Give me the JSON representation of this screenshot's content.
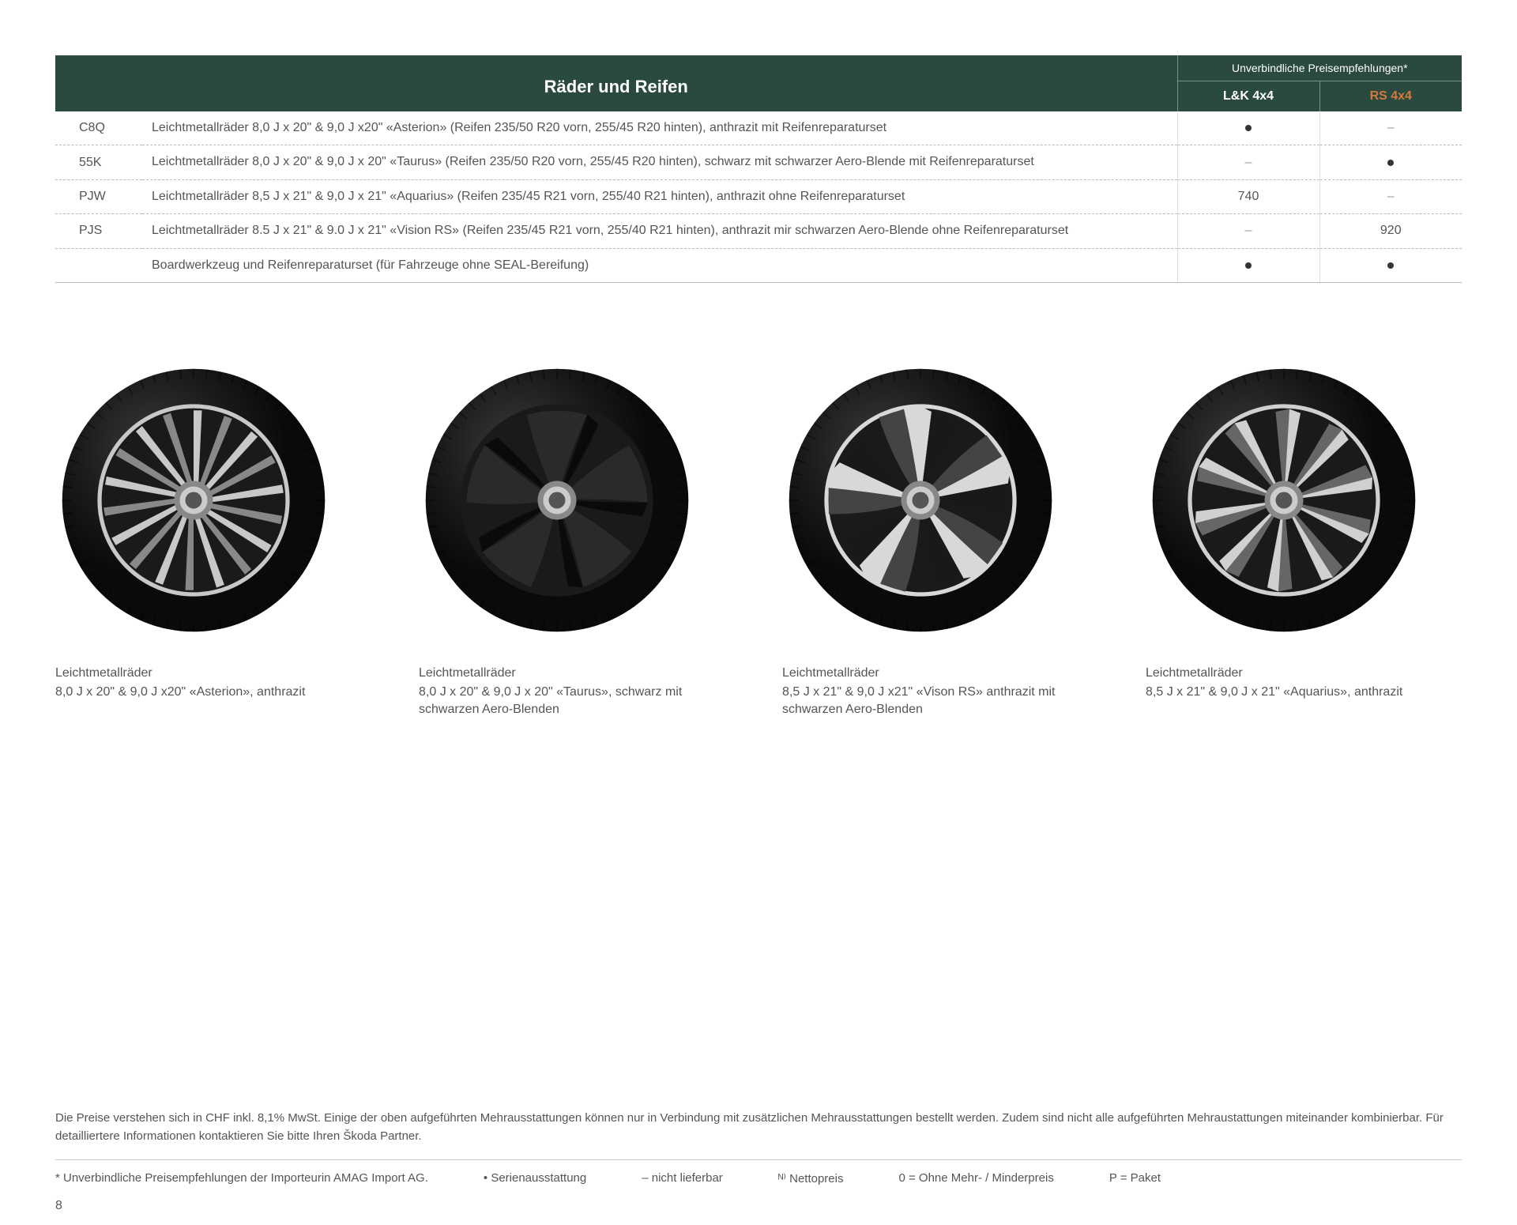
{
  "table": {
    "title": "Räder und Reifen",
    "sup_header": "Unverbindliche Preisempfehlungen*",
    "col1": "L&K 4x4",
    "col2": "RS 4x4",
    "col2_color": "#c7743a",
    "header_bg": "#2a4a3f",
    "rows": [
      {
        "code": "C8Q",
        "desc": "Leichtmetallräder 8,0 J x 20\" & 9,0 J x20\" «Asterion» (Reifen 235/50 R20 vorn, 255/45 R20 hinten), anthrazit mit Reifenreparaturset",
        "c1": "•",
        "c2": "–"
      },
      {
        "code": "55K",
        "desc": "Leichtmetallräder 8,0 J x 20\" & 9,0 J x 20\" «Taurus» (Reifen 235/50 R20 vorn, 255/45 R20 hinten), schwarz mit schwarzer Aero-Blende mit Reifenreparaturset",
        "c1": "–",
        "c2": "•"
      },
      {
        "code": "PJW",
        "desc": "Leichtmetallräder 8,5 J x 21\" & 9,0 J x 21\" «Aquarius» (Reifen 235/45 R21 vorn, 255/40 R21 hinten), anthrazit ohne Reifenreparaturset",
        "c1": "740",
        "c2": "–"
      },
      {
        "code": "PJS",
        "desc": "Leichtmetallräder 8.5 J x 21\" & 9.0 J x 21\" «Vision RS» (Reifen 235/45 R21 vorn, 255/40 R21 hinten), anthrazit mir schwarzen Aero-Blende ohne Reifenreparaturset",
        "c1": "–",
        "c2": "920"
      },
      {
        "code": "",
        "desc": "Boardwerkzeug und Reifenreparaturset (für Fahrzeuge ohne SEAL-Bereifung)",
        "c1": "•",
        "c2": "•"
      }
    ]
  },
  "wheels": [
    {
      "id": "asterion",
      "cap1": "Leichtmetallräder",
      "cap2": "8,0 J x 20\" & 9,0 J x20\" «Asterion», anthrazit",
      "style": "multispoke",
      "spoke_color": "#888",
      "accent": "#c8c8c8",
      "tire": "#1a1a1a",
      "spokes": 18
    },
    {
      "id": "taurus",
      "cap1": "Leichtmetallräder",
      "cap2": "8,0 J x 20\" & 9,0 J x 20\" «Taurus», schwarz mit schwarzen Aero-Blenden",
      "style": "aero5",
      "spoke_color": "#2a2a2a",
      "accent": "#1a1a1a",
      "tire": "#1a1a1a",
      "spokes": 5
    },
    {
      "id": "visionrs",
      "cap1": "Leichtmetallräder",
      "cap2": "8,5 J x 21\" & 9,0 J x21\" «Vison RS» anthrazit mit schwarzen Aero-Blenden",
      "style": "aero5b",
      "spoke_color": "#444",
      "accent": "#d8d8d8",
      "tire": "#1a1a1a",
      "spokes": 5
    },
    {
      "id": "aquarius",
      "cap1": "Leichtmetallräder",
      "cap2": "8,5 J x 21\" & 9,0 J x 21\" «Aquarius», anthrazit",
      "style": "split10",
      "spoke_color": "#666",
      "accent": "#d0d0d0",
      "tire": "#1a1a1a",
      "spokes": 10
    }
  ],
  "footer": {
    "note": "Die Preise verstehen sich in CHF inkl. 8,1% MwSt. Einige der oben aufgeführten Mehrausstattungen können nur in Verbindung mit zusätzlichen Mehrausstattungen bestellt werden. Zudem sind nicht alle aufgeführten Mehraustattungen miteinander kombinierbar. Für detailliertere Informationen kontaktieren Sie bitte Ihren Škoda Partner.",
    "legend": [
      "* Unverbindliche Preisempfehlungen der Importeurin AMAG Import AG.",
      "• Serienausstattung",
      "– nicht lieferbar",
      "ᴺ⁾ Nettopreis",
      "0 = Ohne Mehr- / Minderpreis",
      "P = Paket"
    ],
    "page": "8"
  }
}
